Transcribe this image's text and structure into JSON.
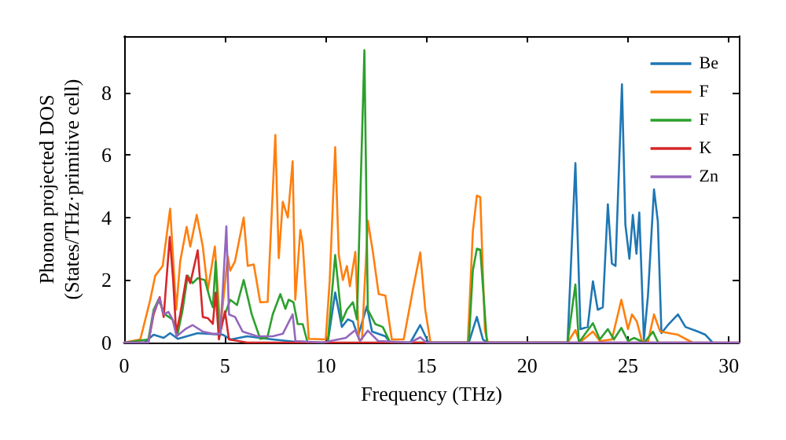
{
  "chart_data": {
    "type": "line",
    "xlabel": "Frequency (THz)",
    "ylabel": "Phonon projected DOS\n(States/THz·primitive cell)",
    "xlim": [
      0,
      30.5
    ],
    "ylim": [
      0,
      9.8
    ],
    "xticks": [
      0,
      5,
      10,
      15,
      20,
      25,
      30
    ],
    "yticks": [
      0,
      2,
      4,
      6,
      8
    ],
    "grid": false,
    "legend": "top right",
    "marker": "none",
    "line_style": "solid",
    "series": [
      {
        "name": "Be",
        "color": "#1f77b4",
        "x": [
          0,
          1.0,
          1.46,
          1.96,
          2.28,
          2.66,
          3.65,
          4.9,
          5.3,
          6.1,
          7.37,
          8.86,
          10.1,
          10.47,
          10.8,
          11.1,
          11.35,
          11.6,
          12.04,
          12.3,
          12.96,
          13.2,
          14.2,
          14.69,
          15.1,
          17.1,
          17.5,
          17.8,
          18.0,
          22.0,
          22.39,
          22.64,
          23.0,
          23.26,
          23.5,
          23.75,
          24.0,
          24.2,
          24.38,
          24.7,
          24.87,
          25.07,
          25.24,
          25.42,
          25.56,
          25.79,
          25.99,
          26.29,
          26.48,
          26.66,
          26.98,
          27.48,
          27.85,
          28.47,
          28.84,
          29.2
        ],
        "values": [
          0,
          0,
          0.25,
          0.15,
          0.3,
          0.12,
          0.3,
          0.25,
          0.1,
          0.2,
          0.1,
          0,
          0,
          1.6,
          0.5,
          0.74,
          0.67,
          0.2,
          1.16,
          0.35,
          0.2,
          0,
          0,
          0.56,
          0,
          0,
          0.82,
          0.1,
          0,
          0,
          5.74,
          0.43,
          0.5,
          1.96,
          1.05,
          1.13,
          4.42,
          2.53,
          2.45,
          8.26,
          3.77,
          2.68,
          4.08,
          2.84,
          4.16,
          0.1,
          1.5,
          4.9,
          3.88,
          0.3,
          0.56,
          0.9,
          0.5,
          0.35,
          0.25,
          0
        ]
      },
      {
        "name": "F",
        "color": "#ff7f0e",
        "x": [
          0,
          0.8,
          1.29,
          1.54,
          1.91,
          2.28,
          2.58,
          2.78,
          3.1,
          3.28,
          3.6,
          3.9,
          4.15,
          4.5,
          4.77,
          5.14,
          5.26,
          5.5,
          5.93,
          6.13,
          6.43,
          6.75,
          7.12,
          7.5,
          7.67,
          7.87,
          8.12,
          8.36,
          8.49,
          8.74,
          8.86,
          9.16,
          10.0,
          10.2,
          10.47,
          10.65,
          10.85,
          11.05,
          11.2,
          11.47,
          11.64,
          11.8,
          12.09,
          12.34,
          12.63,
          12.96,
          13.28,
          13.87,
          14.32,
          14.69,
          14.94,
          15.2,
          17.05,
          17.3,
          17.5,
          17.67,
          17.9,
          18.05,
          22.0,
          22.39,
          22.6,
          23.26,
          23.6,
          24.2,
          24.67,
          25.0,
          25.2,
          25.44,
          25.69,
          26.0,
          26.29,
          26.6,
          27.48,
          28.2
        ],
        "values": [
          0,
          0.1,
          1.36,
          2.14,
          2.45,
          4.28,
          1.05,
          2.6,
          3.7,
          3.07,
          4.08,
          3.07,
          1.67,
          3.07,
          0.43,
          2.76,
          2.3,
          2.6,
          4.0,
          2.45,
          2.5,
          1.29,
          1.3,
          6.64,
          2.7,
          4.5,
          4.0,
          5.8,
          1.37,
          3.6,
          3.15,
          0.12,
          0.1,
          2.0,
          6.25,
          2.8,
          2.0,
          2.45,
          1.8,
          2.9,
          0.1,
          0.1,
          3.9,
          2.9,
          1.55,
          1.5,
          0.1,
          0.1,
          1.67,
          2.88,
          1.05,
          0,
          0,
          3.54,
          4.7,
          4.65,
          0.4,
          0,
          0,
          0.4,
          0,
          0.35,
          0.05,
          0.1,
          1.37,
          0.43,
          0.9,
          0.67,
          0.05,
          0.05,
          0.9,
          0.35,
          0.25,
          0
        ]
      },
      {
        "name": "F",
        "color": "#2ca02c",
        "x": [
          0,
          1.2,
          1.46,
          1.7,
          2.03,
          2.4,
          2.66,
          2.9,
          3.15,
          3.4,
          3.65,
          4.0,
          4.27,
          4.4,
          4.54,
          4.7,
          5.0,
          5.26,
          5.6,
          5.93,
          6.33,
          6.75,
          7.1,
          7.37,
          7.75,
          8.0,
          8.16,
          8.4,
          8.61,
          8.86,
          9.1,
          10.1,
          10.47,
          10.8,
          11.05,
          11.35,
          11.55,
          11.92,
          12.09,
          12.46,
          12.83,
          13.2,
          17.1,
          17.3,
          17.5,
          17.67,
          18.0,
          22.0,
          22.39,
          22.56,
          23.26,
          23.6,
          24.0,
          24.3,
          24.67,
          25.0,
          25.3,
          25.8,
          26.24,
          26.5
        ],
        "values": [
          0,
          0.1,
          1.05,
          1.37,
          0.9,
          0.74,
          0.3,
          1.05,
          2.14,
          1.9,
          2.06,
          2.0,
          1.37,
          1.13,
          2.6,
          0.35,
          0.9,
          1.37,
          1.2,
          2.0,
          0.9,
          0.12,
          0.15,
          0.9,
          1.55,
          1.08,
          1.37,
          1.29,
          0.59,
          0.59,
          0,
          0,
          2.8,
          0.67,
          1.05,
          1.29,
          0.74,
          9.35,
          1.05,
          0.59,
          0.5,
          0,
          0,
          2.3,
          3.0,
          2.97,
          0,
          0,
          1.86,
          0,
          0.62,
          0.1,
          0.43,
          0.1,
          0.47,
          0.05,
          0.15,
          0,
          0.35,
          0
        ]
      },
      {
        "name": "K",
        "color": "#d62728",
        "x": [
          0,
          1.2,
          1.46,
          1.76,
          1.96,
          2.26,
          2.43,
          2.58,
          2.78,
          3.1,
          3.28,
          3.65,
          3.9,
          4.15,
          4.4,
          4.54,
          4.7,
          5.0,
          5.2,
          6.1,
          30.5
        ],
        "values": [
          0,
          0,
          0.9,
          1.45,
          0.82,
          3.38,
          2.0,
          0.3,
          0.9,
          2.14,
          1.9,
          2.95,
          0.82,
          0.78,
          0.6,
          1.6,
          0.1,
          1.0,
          0.1,
          0,
          0
        ]
      },
      {
        "name": "Zn",
        "color": "#9467bd",
        "x": [
          0,
          1.2,
          1.46,
          1.76,
          1.96,
          2.2,
          2.4,
          2.6,
          3.03,
          3.4,
          3.9,
          4.4,
          4.77,
          5.07,
          5.2,
          5.5,
          5.88,
          6.6,
          7.37,
          7.87,
          8.36,
          8.5,
          9.85,
          11.0,
          11.47,
          11.7,
          12.09,
          12.6,
          14.2,
          14.69,
          15.0,
          30.5
        ],
        "values": [
          0,
          0,
          0.98,
          1.41,
          0.9,
          0.98,
          0.74,
          0.2,
          0.43,
          0.56,
          0.35,
          0.28,
          0.28,
          3.72,
          0.9,
          0.82,
          0.35,
          0.2,
          0.2,
          0.28,
          0.9,
          0.05,
          0,
          0.15,
          0.4,
          0.05,
          0.38,
          0.05,
          0,
          0.17,
          0,
          0
        ]
      }
    ]
  }
}
